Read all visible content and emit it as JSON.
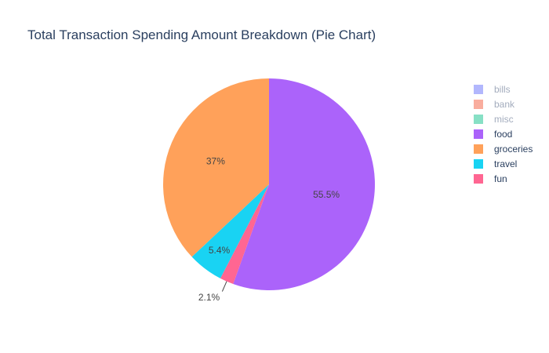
{
  "chart_data": {
    "type": "pie",
    "title": "Total Transaction Spending Amount Breakdown (Pie Chart)",
    "slices": [
      {
        "name": "food",
        "percent": 55.5,
        "label": "55.5%",
        "color": "#ab63fa"
      },
      {
        "name": "fun",
        "percent": 2.1,
        "label": "2.1%",
        "color": "#ff6692"
      },
      {
        "name": "travel",
        "percent": 5.4,
        "label": "5.4%",
        "color": "#19d3f3"
      },
      {
        "name": "groceries",
        "percent": 37.0,
        "label": "37%",
        "color": "#ffa15a"
      }
    ],
    "legend": {
      "position": "top-right",
      "items": [
        {
          "name": "bills",
          "color": "#b2b7fd",
          "visible": false
        },
        {
          "name": "bank",
          "color": "#f9ad9e",
          "visible": false
        },
        {
          "name": "misc",
          "color": "#87e0c5",
          "visible": false
        },
        {
          "name": "food",
          "color": "#ab63fa",
          "visible": true
        },
        {
          "name": "groceries",
          "color": "#ffa15a",
          "visible": true
        },
        {
          "name": "travel",
          "color": "#19d3f3",
          "visible": true
        },
        {
          "name": "fun",
          "color": "#ff6692",
          "visible": true
        }
      ]
    },
    "direction": "clockwise",
    "start_angle_deg": 90
  }
}
